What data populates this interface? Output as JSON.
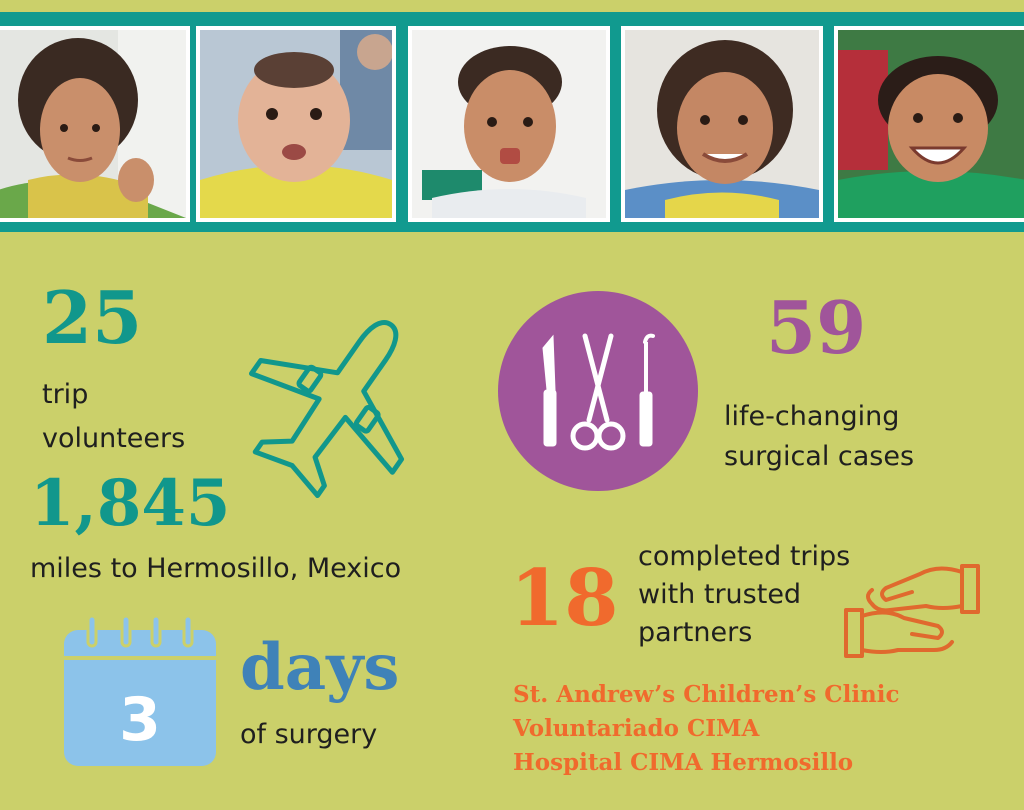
{
  "stats": {
    "volunteers": {
      "number": "25",
      "label_line1": "trip",
      "label_line2": "volunteers"
    },
    "miles": {
      "number": "1,845",
      "label": "miles to Hermosillo, Mexico"
    },
    "cases": {
      "number": "59",
      "label_line1": "life-changing",
      "label_line2": "surgical cases"
    },
    "trips": {
      "number": "18",
      "label_line1": "completed trips",
      "label_line2": "with trusted",
      "label_line3": "partners"
    },
    "days": {
      "calendar_number": "3",
      "word": "days",
      "label": "of surgery"
    }
  },
  "partners": [
    "St. Andrew’s Children’s Clinic",
    "Voluntariado CIMA",
    "Hospital CIMA Hermosillo"
  ],
  "photos": [
    {
      "name": "child-photo-1"
    },
    {
      "name": "baby-photo-2"
    },
    {
      "name": "child-photo-3"
    },
    {
      "name": "child-photo-4"
    },
    {
      "name": "child-photo-5"
    }
  ],
  "icons": {
    "airplane": "airplane-icon",
    "surgical_tools": "surgical-tools-icon",
    "calendar": "calendar-icon",
    "hands": "helping-hands-icon"
  },
  "colors": {
    "background": "#cbd06a",
    "teal": "#11978c",
    "purple": "#a0559a",
    "orange": "#f06a2d",
    "blue": "#3f82b8",
    "calendar": "#8cc3ea"
  }
}
